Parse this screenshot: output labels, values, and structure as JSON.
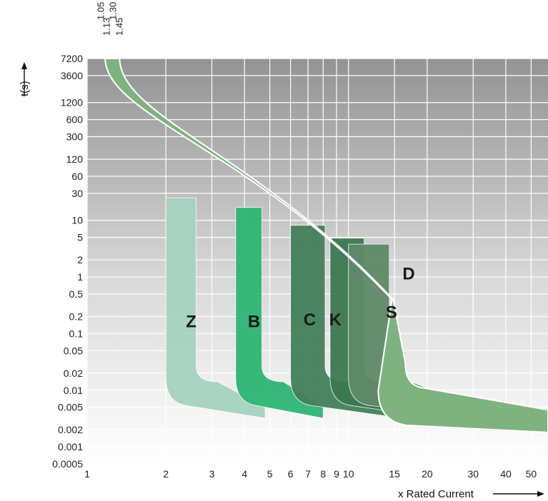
{
  "chart_data": {
    "type": "area",
    "title": "",
    "xlabel": "x Rated Current",
    "ylabel": "t(s)",
    "x_scale": "log",
    "y_scale": "log",
    "xlim": [
      1,
      58
    ],
    "ylim": [
      0.0005,
      7200
    ],
    "grid": true,
    "x_ticks": [
      {
        "v": 1,
        "label": "1"
      },
      {
        "v": 2,
        "label": "2"
      },
      {
        "v": 3,
        "label": "3"
      },
      {
        "v": 4,
        "label": "4"
      },
      {
        "v": 5,
        "label": "5"
      },
      {
        "v": 6,
        "label": "6"
      },
      {
        "v": 7,
        "label": "7"
      },
      {
        "v": 8,
        "label": "8"
      },
      {
        "v": 9,
        "label": "9"
      },
      {
        "v": 10,
        "label": "10"
      },
      {
        "v": 15,
        "label": "15"
      },
      {
        "v": 20,
        "label": "20"
      },
      {
        "v": 30,
        "label": "30"
      },
      {
        "v": 40,
        "label": "40"
      },
      {
        "v": 50,
        "label": "50"
      }
    ],
    "y_ticks": [
      {
        "v": 7200,
        "label": "7200"
      },
      {
        "v": 3600,
        "label": "3600"
      },
      {
        "v": 1200,
        "label": "1200"
      },
      {
        "v": 600,
        "label": "600"
      },
      {
        "v": 300,
        "label": "300"
      },
      {
        "v": 120,
        "label": "120"
      },
      {
        "v": 60,
        "label": "60"
      },
      {
        "v": 30,
        "label": "30"
      },
      {
        "v": 10,
        "label": "10"
      },
      {
        "v": 5,
        "label": "5"
      },
      {
        "v": 2,
        "label": "2"
      },
      {
        "v": 1,
        "label": "1"
      },
      {
        "v": 0.5,
        "label": "0.5"
      },
      {
        "v": 0.2,
        "label": "0.2"
      },
      {
        "v": 0.1,
        "label": "0.1"
      },
      {
        "v": 0.05,
        "label": "0.05"
      },
      {
        "v": 0.02,
        "label": "0.02"
      },
      {
        "v": 0.01,
        "label": "0.01"
      },
      {
        "v": 0.005,
        "label": "0.005"
      },
      {
        "v": 0.002,
        "label": "0.002"
      },
      {
        "v": 0.001,
        "label": "0.001"
      },
      {
        "v": 0.0005,
        "label": "0.0005"
      }
    ],
    "multipliers": [
      {
        "label": "1.05",
        "x": 1.13
      },
      {
        "label": "1.13",
        "x": 1.19
      },
      {
        "label": "1.30",
        "x": 1.26
      },
      {
        "label": "1.45",
        "x": 1.33
      }
    ],
    "series": [
      {
        "name": "Z",
        "color": "#a6d3bf",
        "knee_x": 2,
        "right_x": 3,
        "label_x": 2.5,
        "label_y": 0.13
      },
      {
        "name": "B",
        "color": "#2fb575",
        "knee_x": 3.7,
        "right_x": 5,
        "label_x": 4.35,
        "label_y": 0.13
      },
      {
        "name": "C",
        "color": "#44805a",
        "knee_x": 6,
        "right_x": 10,
        "label_x": 7.1,
        "label_y": 0.14
      },
      {
        "name": "K",
        "color": "#3a7a50",
        "knee_x": 8.5,
        "right_x": 14,
        "label_x": 8.9,
        "label_y": 0.14
      },
      {
        "name": "D",
        "color": "#5e8a68",
        "knee_x": 10,
        "right_x": 19.5,
        "label_x": 17,
        "label_y": 0.9
      },
      {
        "name": "S",
        "color": "#7eb37f",
        "knee_x": 13,
        "right_x": 16.5,
        "label_x": 14.6,
        "label_y": 0.19
      }
    ]
  }
}
